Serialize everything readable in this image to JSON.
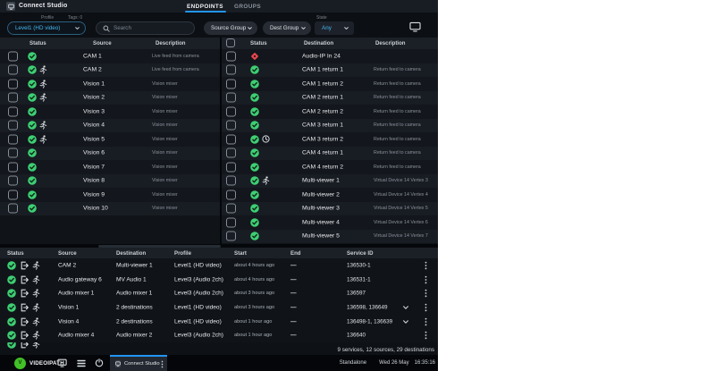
{
  "app": {
    "title": "Connect Studio",
    "tabs": [
      {
        "label": "ENDPOINTS",
        "active": true
      },
      {
        "label": "GROUPS",
        "active": false
      }
    ]
  },
  "filters": {
    "profile_label": "Profile",
    "tags_label": "Tags: 0",
    "profile_value": "Level1 (HD video)",
    "search_placeholder": "Search",
    "source_group": "Source Group",
    "dest_group": "Dest Group",
    "state_label": "State",
    "state_value": "Any"
  },
  "colors": {
    "accent": "#2196f3",
    "ok": "#3ecf73",
    "error": "#e4464d",
    "profile_blue": "#45b6f2"
  },
  "sources_panel": {
    "columns": [
      "Status",
      "Source",
      "Description"
    ],
    "rows": [
      {
        "name": "CAM 1",
        "desc": "Live feed from camera",
        "icons": [
          "check"
        ]
      },
      {
        "name": "CAM 2",
        "desc": "Live feed from camera",
        "icons": [
          "check",
          "runner"
        ]
      },
      {
        "name": "Vision 1",
        "desc": "Vision mixer",
        "icons": [
          "check",
          "runner"
        ]
      },
      {
        "name": "Vision 2",
        "desc": "Vision mixer",
        "icons": [
          "check",
          "runner"
        ]
      },
      {
        "name": "Vision 3",
        "desc": "Vision mixer",
        "icons": [
          "check"
        ]
      },
      {
        "name": "Vision 4",
        "desc": "Vision mixer",
        "icons": [
          "check",
          "runner"
        ]
      },
      {
        "name": "Vision 5",
        "desc": "Vision mixer",
        "icons": [
          "check",
          "runner"
        ]
      },
      {
        "name": "Vision 6",
        "desc": "Vision mixer",
        "icons": [
          "check"
        ]
      },
      {
        "name": "Vision 7",
        "desc": "Vision mixer",
        "icons": [
          "check"
        ]
      },
      {
        "name": "Vision 8",
        "desc": "Vision mixer",
        "icons": [
          "check"
        ]
      },
      {
        "name": "Vision 9",
        "desc": "Vision mixer",
        "icons": [
          "check"
        ]
      },
      {
        "name": "Vision 10",
        "desc": "Vision mixer",
        "icons": [
          "check"
        ]
      }
    ]
  },
  "destinations_panel": {
    "columns": [
      "Status",
      "Destination",
      "Description"
    ],
    "rows": [
      {
        "name": "Audio-IP In 24",
        "desc": "",
        "icons": [
          "error"
        ]
      },
      {
        "name": "CAM 1 return 1",
        "desc": "Return feed to camera",
        "icons": [
          "check"
        ]
      },
      {
        "name": "CAM 1 return 2",
        "desc": "Return feed to camera",
        "icons": [
          "check"
        ]
      },
      {
        "name": "CAM 2 return 1",
        "desc": "Return feed to camera",
        "icons": [
          "check"
        ]
      },
      {
        "name": "CAM 2 return 2",
        "desc": "Return feed to camera",
        "icons": [
          "check"
        ]
      },
      {
        "name": "CAM 3 return 1",
        "desc": "Return feed to camera",
        "icons": [
          "check"
        ]
      },
      {
        "name": "CAM 3 return 2",
        "desc": "Return feed to camera",
        "icons": [
          "check",
          "clock"
        ]
      },
      {
        "name": "CAM 4 return 1",
        "desc": "Return feed to camera",
        "icons": [
          "check"
        ]
      },
      {
        "name": "CAM 4 return 2",
        "desc": "Return feed to camera",
        "icons": [
          "check"
        ]
      },
      {
        "name": "Multi-viewer 1",
        "desc": "Virtual Device 14 Vertex 3",
        "icons": [
          "check",
          "runner"
        ]
      },
      {
        "name": "Multi-viewer 2",
        "desc": "Virtual Device 14 Vertex 4",
        "icons": [
          "check"
        ]
      },
      {
        "name": "Multi-viewer 3",
        "desc": "Virtual Device 14 Vertex 5",
        "icons": [
          "check"
        ]
      },
      {
        "name": "Multi-viewer 4",
        "desc": "Virtual Device 14 Vertex 6",
        "icons": [
          "check"
        ]
      },
      {
        "name": "Multi-viewer 5",
        "desc": "Virtual Device 14 Vertex 7",
        "icons": [
          "check"
        ]
      }
    ]
  },
  "services_panel": {
    "columns": [
      "Status",
      "Source",
      "Destination",
      "Profile",
      "Start",
      "End",
      "Service ID"
    ],
    "rows": [
      {
        "icons": [
          "check",
          "export",
          "runner"
        ],
        "source": "CAM 2",
        "destination": "Multi-viewer 1",
        "profile": "Level1 (HD video)",
        "start": "about 4 hours ago",
        "end": "—",
        "service_id": "136530-1",
        "expandable": false
      },
      {
        "icons": [
          "check",
          "export",
          "runner"
        ],
        "source": "Audio gateway 6",
        "destination": "MV Audio 1",
        "profile": "Level3 (Audio 2ch)",
        "start": "about 4 hours ago",
        "end": "—",
        "service_id": "136531-1",
        "expandable": false
      },
      {
        "icons": [
          "check",
          "export",
          "runner"
        ],
        "source": "Audio mixer 1",
        "destination": "Audio mixer 1",
        "profile": "Level3 (Audio 2ch)",
        "start": "about 3 hours ago",
        "end": "—",
        "service_id": "136597",
        "expandable": false
      },
      {
        "icons": [
          "check",
          "export",
          "runner"
        ],
        "source": "Vision 1",
        "destination": "2 destinations",
        "profile": "Level1 (HD video)",
        "start": "about 3 hours ago",
        "end": "—",
        "service_id": "136598, 136649",
        "expandable": true
      },
      {
        "icons": [
          "check",
          "export",
          "runner"
        ],
        "source": "Vision 4",
        "destination": "2 destinations",
        "profile": "Level1 (HD video)",
        "start": "about 1 hour ago",
        "end": "—",
        "service_id": "136498-1, 136639",
        "expandable": true
      },
      {
        "icons": [
          "check",
          "export",
          "runner"
        ],
        "source": "Audio mixer 4",
        "destination": "Audio mixer 2",
        "profile": "Level3 (Audio 2ch)",
        "start": "about 1 hour ago",
        "end": "—",
        "service_id": "136640",
        "expandable": false
      }
    ],
    "partial_row": {
      "icons": [
        "check",
        "export",
        "runner"
      ]
    },
    "summary": "9 services, 12 sources, 29 destinations"
  },
  "taskbar": {
    "brand": "VIDEOIPATH",
    "app_tab": "Connect Studio",
    "mode": "Standalone",
    "date": "Wed 26 May",
    "time": "16:35:16"
  }
}
